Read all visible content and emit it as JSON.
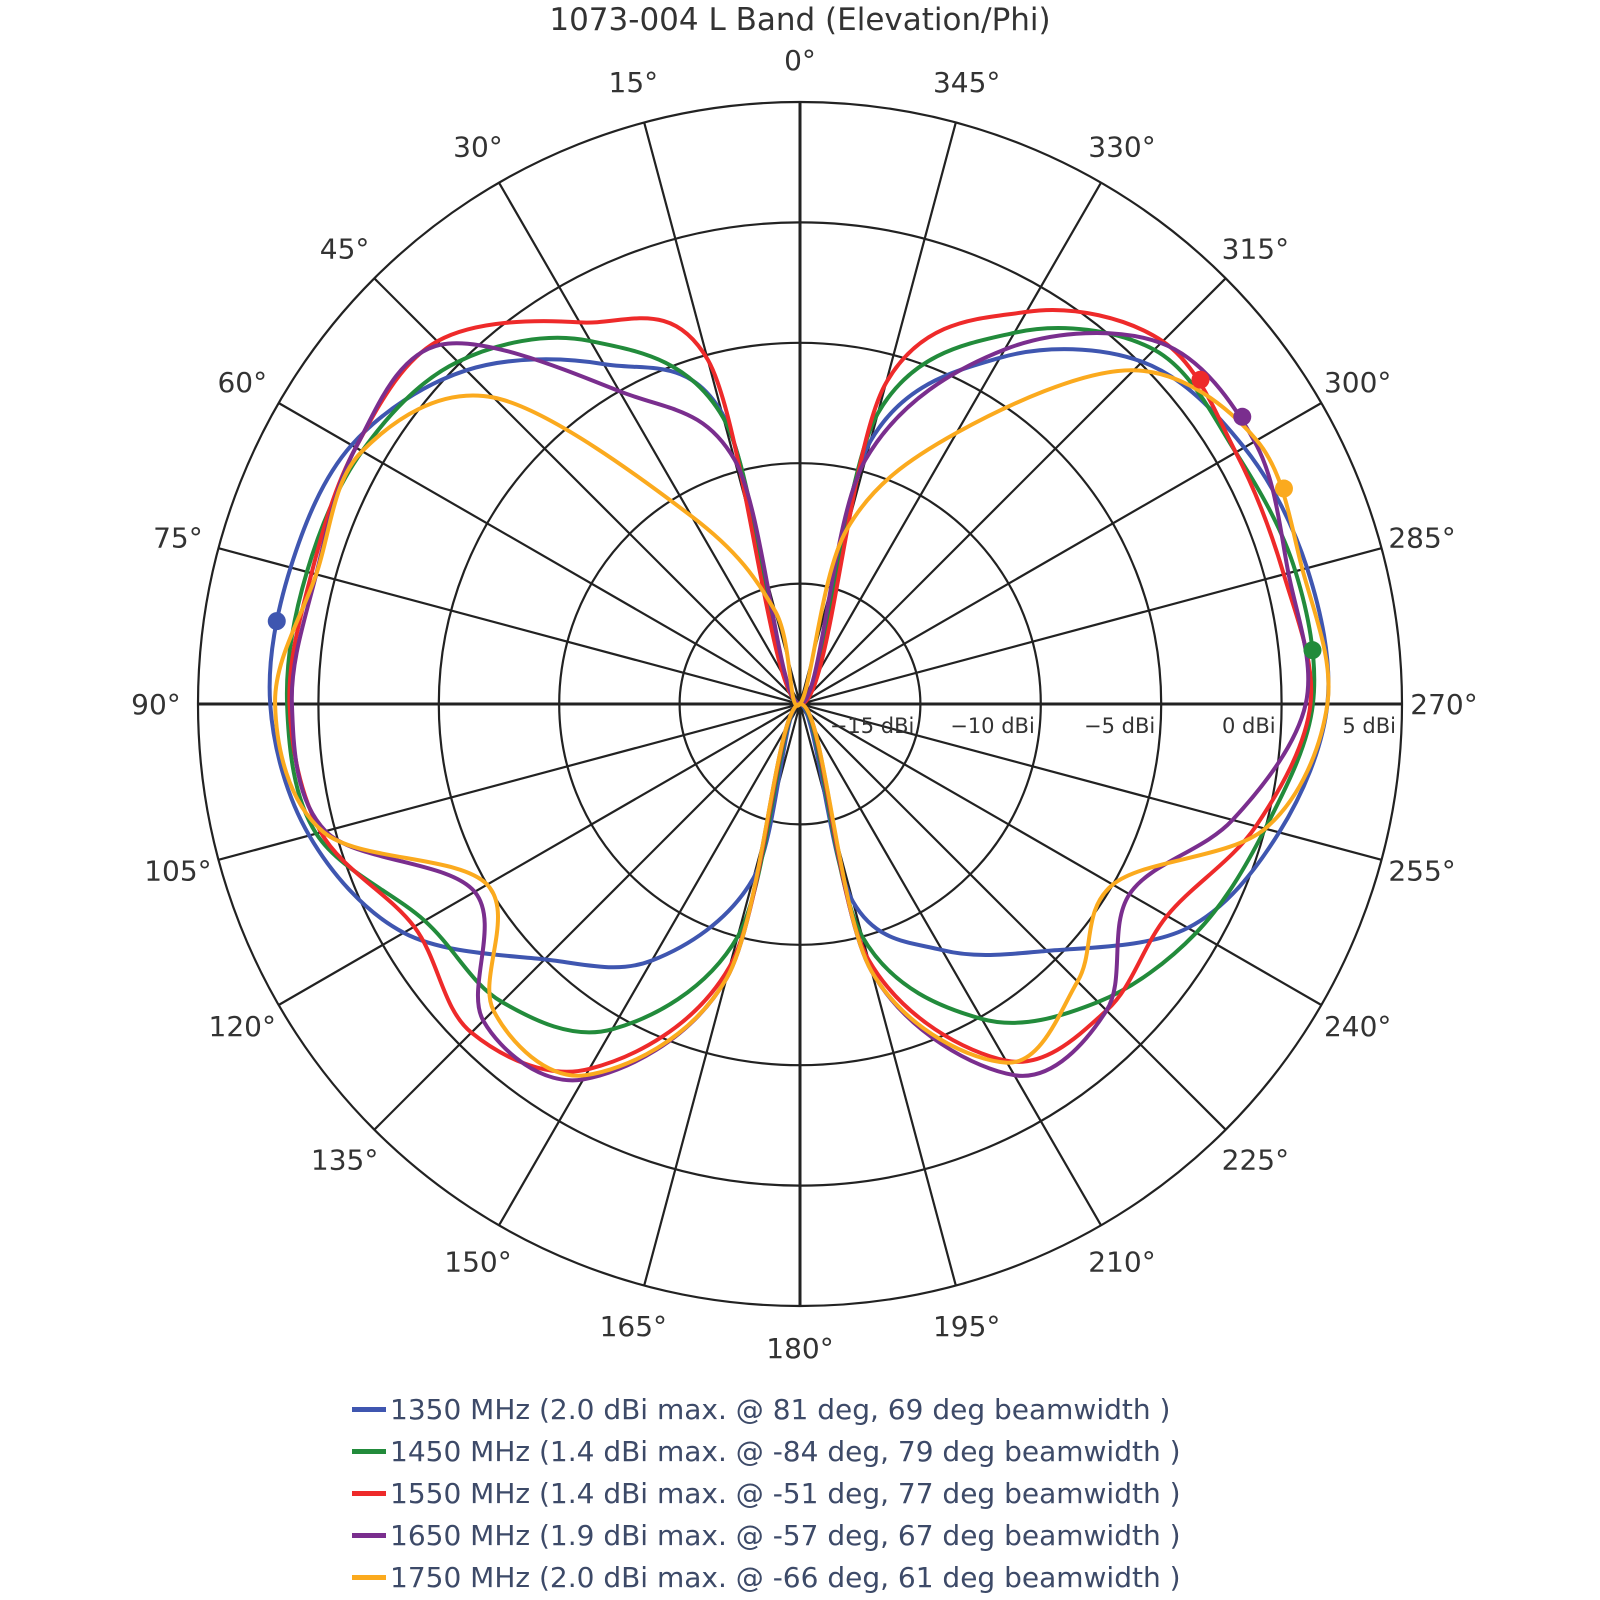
{
  "chart_data": {
    "type": "polar-line",
    "title": "1073-004 L Band (Elevation/Phi)",
    "angular_axis": {
      "direction": "counterclockwise",
      "zero_at": "top",
      "tick_values": [
        0,
        15,
        30,
        45,
        60,
        75,
        90,
        105,
        120,
        135,
        150,
        165,
        180,
        195,
        210,
        225,
        240,
        255,
        270,
        285,
        300,
        315,
        330,
        345
      ],
      "tick_labels": [
        "0°",
        "15°",
        "30°",
        "45°",
        "60°",
        "75°",
        "90°",
        "105°",
        "120°",
        "135°",
        "150°",
        "165°",
        "180°",
        "195°",
        "210°",
        "225°",
        "240°",
        "255°",
        "270°",
        "285°",
        "300°",
        "315°",
        "330°",
        "345°"
      ]
    },
    "radial_axis": {
      "range": [
        -20,
        5
      ],
      "tick_values": [
        -15,
        -10,
        -5,
        0,
        5
      ],
      "tick_labels": [
        "−15 dBi",
        "−10 dBi",
        "−5 dBi",
        "0 dBi",
        "5 dBi"
      ],
      "unit": "dBi"
    },
    "grid": true,
    "legend_position": "bottom",
    "theta": [
      0,
      15,
      30,
      45,
      60,
      75,
      90,
      105,
      120,
      135,
      150,
      165,
      180,
      195,
      210,
      225,
      240,
      255,
      270,
      285,
      300,
      315,
      330,
      345
    ],
    "series": [
      {
        "name": "1350 MHz (2.0 dBi max. @ 81 deg, 69 deg beamwidth )",
        "color": "#3f56b0",
        "values": [
          -20,
          -7.5,
          -3.7,
          -0.4,
          1.5,
          1.9,
          2.0,
          1.1,
          -1.0,
          -5.0,
          -7.7,
          -12.5,
          -20,
          -11.5,
          -8.2,
          -5.5,
          -1.4,
          0.6,
          1.9,
          1.8,
          1.3,
          0.1,
          -3.4,
          -8.7
        ],
        "peak": {
          "theta": 81,
          "value": 2.0
        }
      },
      {
        "name": "1450 MHz (1.4 dBi max. @ -84 deg, 79 deg beamwidth )",
        "color": "#228b3b",
        "values": [
          -20,
          -7.7,
          -2.6,
          0.1,
          1.0,
          1.2,
          1.3,
          0.8,
          -2.0,
          -2.5,
          -4.4,
          -10,
          -20,
          -10,
          -4.9,
          -2.5,
          -1.0,
          0.0,
          1.3,
          1.3,
          0.9,
          0.8,
          -2.2,
          -7.5
        ],
        "peak": {
          "theta": 276,
          "value": 1.4
        }
      },
      {
        "name": "1550 MHz (1.4 dBi max. @ -51 deg, 77 deg beamwidth )",
        "color": "#ee2a2a",
        "values": [
          -20,
          -5.2,
          -1.7,
          1.3,
          1.3,
          1.0,
          1.2,
          0.6,
          -1.5,
          -0.7,
          -2.5,
          -8.7,
          -20,
          -9,
          -2.9,
          -2.0,
          -2.4,
          -0.4,
          1.2,
          0.8,
          0.9,
          1.3,
          -1.2,
          -6.2
        ],
        "peak": {
          "theta": 309,
          "value": 1.4
        }
      },
      {
        "name": "1650 MHz (1.9 dBi max. @ -57 deg, 67 deg beamwidth )",
        "color": "#7a2e8e",
        "values": [
          -20,
          -9.5,
          -5,
          1.1,
          1.3,
          0.8,
          1.1,
          0.4,
          -4.4,
          -1.4,
          -2.0,
          -8.2,
          -20,
          -8.5,
          -2.2,
          -2.0,
          -4.2,
          -1.4,
          1.0,
          1.0,
          1.8,
          1.2,
          -3,
          -9.5
        ],
        "peak": {
          "theta": 303,
          "value": 1.9
        }
      },
      {
        "name": "1750 MHz (2.0 dBi max. @ -66 deg, 61 deg beamwidth )",
        "color": "#fbaa1e",
        "values": [
          -20,
          -16,
          -11,
          -2,
          1.0,
          0.8,
          1.8,
          0.5,
          -5,
          -2,
          -2.2,
          -8.2,
          -20,
          -8.5,
          -2.8,
          -3.7,
          -5,
          0,
          1.9,
          1.6,
          1.9,
          -0.4,
          -7,
          -12.5
        ],
        "peak": {
          "theta": 294,
          "value": 2.0
        }
      }
    ]
  }
}
